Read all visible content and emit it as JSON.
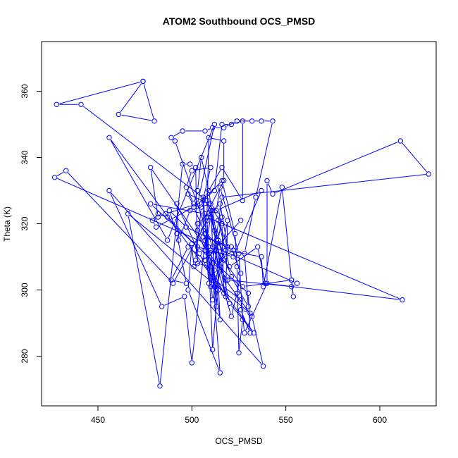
{
  "chart_data": {
    "type": "scatter",
    "title": "ATOM2 Southbound OCS_PMSD",
    "xlabel": "OCS_PMSD",
    "ylabel": "Theta (K)",
    "xlim": [
      420,
      630
    ],
    "ylim": [
      265,
      375
    ],
    "xticks": [
      450,
      500,
      550,
      600
    ],
    "yticks": [
      280,
      300,
      320,
      340,
      360
    ],
    "grid": false,
    "legend": "none",
    "marker": "open-circle",
    "connect_points": true,
    "color": "#0000ff",
    "series": [
      {
        "points": [
          [
            474,
            363
          ],
          [
            461,
            353
          ],
          [
            480,
            351
          ],
          [
            474,
            363
          ],
          [
            428,
            356
          ],
          [
            441,
            356
          ],
          [
            508,
            327
          ],
          [
            513,
            315
          ],
          [
            520,
            296
          ],
          [
            533,
            287
          ],
          [
            456,
            346
          ],
          [
            487,
            315
          ],
          [
            512,
            350
          ],
          [
            503,
            326
          ],
          [
            486,
            323
          ],
          [
            482,
            322
          ],
          [
            478,
            337
          ],
          [
            519,
            303
          ],
          [
            553,
            301
          ],
          [
            556,
            302
          ],
          [
            427,
            334
          ],
          [
            433,
            336
          ],
          [
            490,
            302
          ],
          [
            511,
            324
          ],
          [
            513,
            317
          ],
          [
            521,
            304
          ],
          [
            530,
            295
          ],
          [
            528,
            311
          ],
          [
            534,
            328
          ],
          [
            543,
            351
          ],
          [
            537,
            351
          ],
          [
            532,
            351
          ],
          [
            524,
            351
          ],
          [
            517,
            349
          ],
          [
            511,
            349
          ],
          [
            507,
            348
          ],
          [
            495,
            348
          ],
          [
            489,
            346
          ],
          [
            491,
            345
          ],
          [
            511,
            313
          ],
          [
            518,
            303
          ],
          [
            532,
            292
          ],
          [
            538,
            277
          ],
          [
            456,
            330
          ],
          [
            484,
            295
          ],
          [
            496,
            298
          ],
          [
            500,
            278
          ],
          [
            507,
            315
          ],
          [
            509,
            302
          ],
          [
            507,
            323
          ],
          [
            478,
            326
          ],
          [
            530,
            299
          ],
          [
            531,
            287
          ],
          [
            526,
            294
          ],
          [
            531,
            293
          ],
          [
            466,
            323
          ],
          [
            483,
            271
          ],
          [
            495,
            338
          ],
          [
            499,
            338
          ],
          [
            502,
            337
          ],
          [
            503,
            308
          ],
          [
            510,
            307
          ],
          [
            517,
            299
          ],
          [
            516,
            320
          ],
          [
            509,
            326
          ],
          [
            498,
            329
          ],
          [
            501,
            325
          ],
          [
            512,
            330
          ],
          [
            516,
            350
          ],
          [
            521,
            350
          ],
          [
            527,
            351
          ],
          [
            527,
            327
          ],
          [
            516,
            337
          ],
          [
            506,
            327
          ],
          [
            516,
            333
          ],
          [
            523,
            317
          ],
          [
            524,
            307
          ],
          [
            525,
            281
          ],
          [
            527,
            291
          ],
          [
            525,
            311
          ],
          [
            515,
            331
          ],
          [
            513,
            324
          ],
          [
            537,
            330
          ],
          [
            522,
            310
          ],
          [
            503,
            313
          ],
          [
            487,
            322
          ],
          [
            482,
            323
          ],
          [
            479,
            321
          ],
          [
            481,
            319
          ],
          [
            501,
            325
          ],
          [
            507,
            317
          ],
          [
            510,
            304
          ],
          [
            526,
            297
          ],
          [
            528,
            287
          ],
          [
            540,
            302
          ],
          [
            540,
            333
          ],
          [
            543,
            329
          ],
          [
            611,
            345
          ],
          [
            626,
            335
          ],
          [
            516,
            328
          ],
          [
            511,
            308
          ],
          [
            515,
            291
          ],
          [
            513,
            314
          ],
          [
            506,
            318
          ],
          [
            512,
            301
          ],
          [
            519,
            321
          ],
          [
            518,
            298
          ],
          [
            510,
            324
          ],
          [
            513,
            295
          ],
          [
            510,
            312
          ],
          [
            515,
            275
          ],
          [
            498,
            300
          ],
          [
            500,
            314
          ],
          [
            501,
            307
          ],
          [
            513,
            312
          ],
          [
            527,
            301
          ],
          [
            553,
            303
          ],
          [
            554,
            298
          ],
          [
            553,
            303
          ],
          [
            548,
            331
          ],
          [
            538,
            301
          ],
          [
            537,
            310
          ],
          [
            518,
            312
          ],
          [
            512,
            306
          ],
          [
            510,
            301
          ],
          [
            516,
            322
          ],
          [
            510,
            326
          ],
          [
            499,
            324
          ],
          [
            493,
            315
          ],
          [
            492,
            326
          ],
          [
            504,
            311
          ],
          [
            514,
            300
          ],
          [
            509,
            311
          ],
          [
            508,
            321
          ],
          [
            509,
            346
          ],
          [
            517,
            345
          ],
          [
            517,
            333
          ],
          [
            503,
            318
          ],
          [
            507,
            312
          ],
          [
            510,
            322
          ],
          [
            514,
            315
          ],
          [
            517,
            309
          ],
          [
            511,
            297
          ],
          [
            506,
            328
          ],
          [
            506,
            316
          ],
          [
            521,
            313
          ],
          [
            526,
            305
          ],
          [
            524,
            299
          ],
          [
            521,
            292
          ],
          [
            513,
            308
          ],
          [
            512,
            318
          ],
          [
            509,
            330
          ],
          [
            505,
            340
          ],
          [
            503,
            330
          ],
          [
            501,
            326
          ],
          [
            497,
            331
          ],
          [
            500,
            336
          ],
          [
            510,
            337
          ],
          [
            505,
            325
          ],
          [
            502,
            309
          ],
          [
            503,
            320
          ],
          [
            515,
            326
          ],
          [
            519,
            313
          ],
          [
            514,
            321
          ],
          [
            520,
            307
          ],
          [
            535,
            313
          ],
          [
            539,
            302
          ],
          [
            612,
            297
          ],
          [
            508,
            322
          ],
          [
            511,
            282
          ],
          [
            515,
            309
          ],
          [
            522,
            312
          ],
          [
            497,
            319
          ],
          [
            488,
            324
          ],
          [
            492,
            317
          ],
          [
            497,
            302
          ],
          [
            489,
            303
          ],
          [
            498,
            313
          ],
          [
            507,
            309
          ],
          [
            526,
            321
          ]
        ]
      }
    ]
  }
}
